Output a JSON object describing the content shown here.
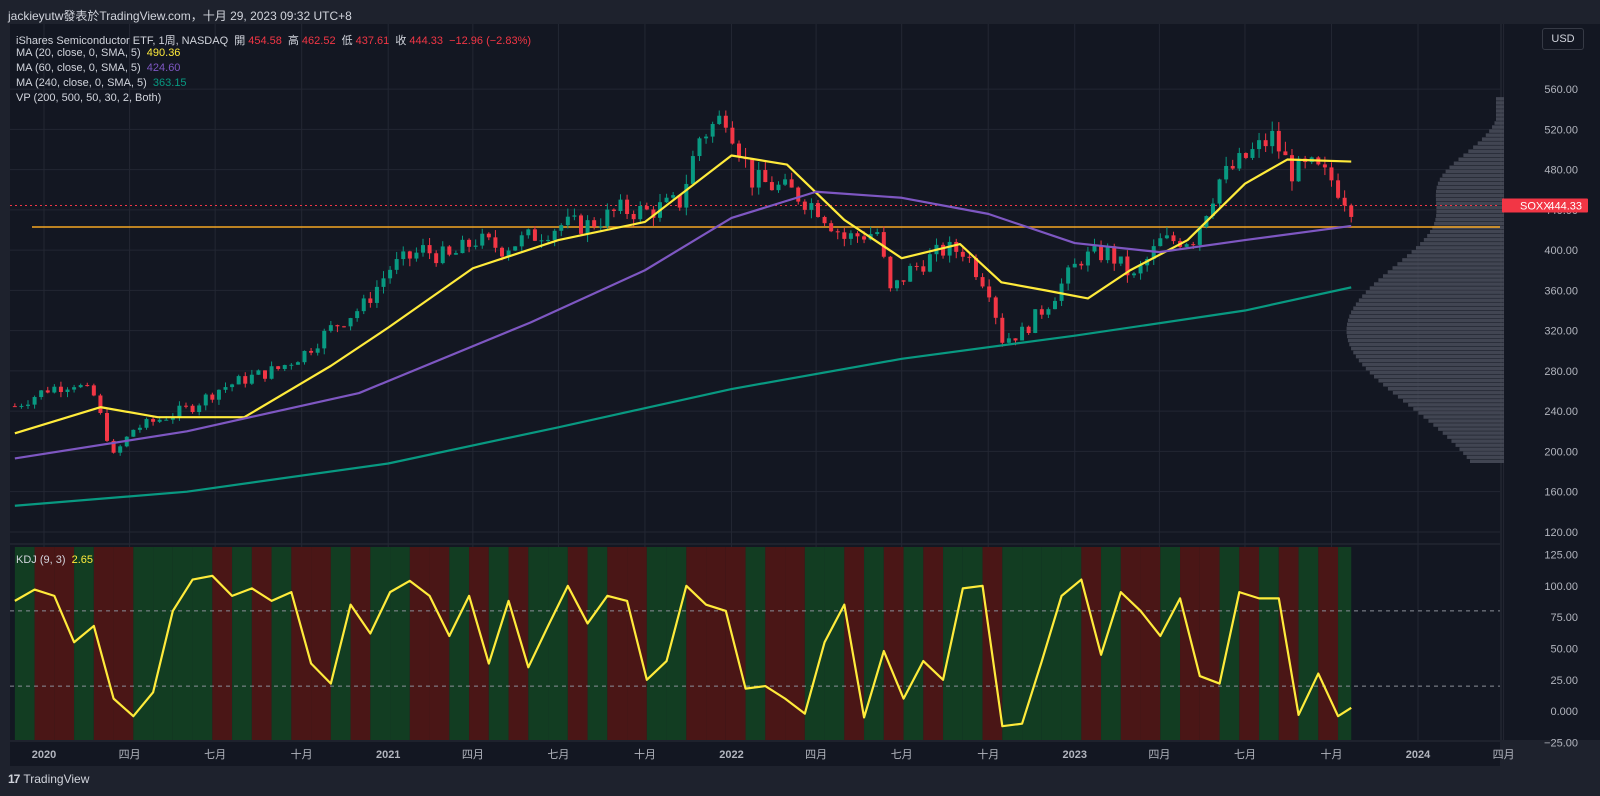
{
  "header": {
    "text": "jackieyutw發表於TradingView.com，十月 29, 2023 09:32 UTC+8"
  },
  "legend": {
    "title_prefix": "iShares Semiconductor ETF, 1周, NASDAQ",
    "ohlc": [
      {
        "label": "開",
        "value": "454.58"
      },
      {
        "label": "高",
        "value": "462.52"
      },
      {
        "label": "低",
        "value": "437.61"
      },
      {
        "label": "收",
        "value": "444.33"
      }
    ],
    "change": "−12.96 (−2.83%)",
    "indicators": [
      {
        "label": "MA (20, close, 0, SMA, 5)",
        "value": "490.36",
        "color": "#ffeb3b"
      },
      {
        "label": "MA (60, close, 0, SMA, 5)",
        "value": "424.60",
        "color": "#7e57c2"
      },
      {
        "label": "MA (240, close, 0, SMA, 5)",
        "value": "363.15",
        "color": "#089981"
      },
      {
        "label": "VP (200, 500, 50, 30, 2, Both)",
        "value": "",
        "color": "#d1d4dc"
      }
    ]
  },
  "kdj_legend": {
    "label": "KDJ (9, 3)",
    "value": "2.65"
  },
  "usd_button": "USD",
  "price_tag": {
    "symbol": "SOXX",
    "value": "444.33"
  },
  "footer": {
    "brand": "TradingView",
    "logo_glyph": "17"
  },
  "colors": {
    "up": "#089981",
    "down": "#f23645",
    "ma20": "#ffeb3b",
    "ma60": "#7e57c2",
    "ma240": "#089981",
    "kdj": "#ffeb3b",
    "bg": "#131722",
    "support": "#f5a623"
  },
  "chart_data": [
    {
      "type": "candlestick",
      "title": "iShares Semiconductor ETF",
      "symbol": "SOXX",
      "interval": "1周",
      "exchange": "NASDAQ",
      "y_ticks": [
        "560.00",
        "520.00",
        "480.00",
        "440.00",
        "400.00",
        "360.00",
        "320.00",
        "280.00",
        "240.00",
        "200.00",
        "160.00",
        "120.00"
      ],
      "ylim": [
        112,
        572
      ],
      "x_ticks": [
        "2020",
        "四月",
        "七月",
        "十月",
        "2021",
        "四月",
        "七月",
        "十月",
        "2022",
        "四月",
        "七月",
        "十月",
        "2023",
        "四月",
        "七月",
        "十月",
        "2024",
        "四月"
      ],
      "x_tick_dates": [
        "2020-01-01",
        "2020-04-01",
        "2020-07-01",
        "2020-10-01",
        "2021-01-01",
        "2021-04-01",
        "2021-07-01",
        "2021-10-01",
        "2022-01-01",
        "2022-04-01",
        "2022-07-01",
        "2022-10-01",
        "2023-01-01",
        "2023-04-01",
        "2023-07-01",
        "2023-10-01",
        "2024-01-01",
        "2024-04-01"
      ],
      "series": [
        {
          "name": "Price (weekly close, approx.)",
          "dates": [
            "2019-12-01",
            "2020-01-05",
            "2020-02-02",
            "2020-02-23",
            "2020-03-15",
            "2020-04-05",
            "2020-05-03",
            "2020-06-07",
            "2020-07-05",
            "2020-08-02",
            "2020-09-06",
            "2020-10-04",
            "2020-11-01",
            "2020-12-06",
            "2021-01-03",
            "2021-02-07",
            "2021-03-07",
            "2021-04-04",
            "2021-05-02",
            "2021-06-06",
            "2021-07-04",
            "2021-08-01",
            "2021-09-05",
            "2021-10-03",
            "2021-11-07",
            "2021-11-28",
            "2021-12-26",
            "2022-01-23",
            "2022-03-06",
            "2022-04-03",
            "2022-05-01",
            "2022-06-05",
            "2022-06-19",
            "2022-07-10",
            "2022-08-14",
            "2022-09-04",
            "2022-10-02",
            "2022-10-16",
            "2022-11-06",
            "2022-12-04",
            "2023-01-08",
            "2023-02-05",
            "2023-03-05",
            "2023-04-02",
            "2023-05-07",
            "2023-06-04",
            "2023-07-02",
            "2023-07-30",
            "2023-08-20",
            "2023-09-10",
            "2023-10-01",
            "2023-10-22"
          ],
          "values": [
            245,
            262,
            268,
            255,
            195,
            222,
            232,
            245,
            262,
            272,
            282,
            298,
            322,
            345,
            382,
            400,
            392,
            410,
            402,
            415,
            425,
            425,
            440,
            438,
            448,
            512,
            535,
            470,
            458,
            442,
            412,
            418,
            358,
            380,
            400,
            400,
            362,
            312,
            318,
            348,
            392,
            398,
            372,
            408,
            412,
            470,
            492,
            512,
            478,
            482,
            470,
            444
          ]
        },
        {
          "name": "MA 20",
          "dates": [
            "2019-12-01",
            "2020-03-01",
            "2020-05-01",
            "2020-08-01",
            "2020-11-01",
            "2021-01-01",
            "2021-04-01",
            "2021-07-01",
            "2021-10-01",
            "2022-01-01",
            "2022-03-01",
            "2022-05-01",
            "2022-07-01",
            "2022-09-01",
            "2022-10-15",
            "2022-12-01",
            "2023-01-15",
            "2023-03-01",
            "2023-05-01",
            "2023-07-01",
            "2023-08-15",
            "2023-10-22"
          ],
          "values": [
            218,
            244,
            234,
            234,
            285,
            323,
            382,
            410,
            428,
            494,
            485,
            430,
            392,
            406,
            368,
            360,
            352,
            380,
            410,
            466,
            490,
            488
          ]
        },
        {
          "name": "MA 60",
          "dates": [
            "2019-12-01",
            "2020-06-01",
            "2020-12-01",
            "2021-06-01",
            "2021-10-01",
            "2022-01-01",
            "2022-04-01",
            "2022-07-01",
            "2022-10-01",
            "2023-01-01",
            "2023-04-01",
            "2023-07-01",
            "2023-10-22"
          ],
          "values": [
            193,
            220,
            258,
            328,
            380,
            432,
            458,
            452,
            436,
            407,
            398,
            410,
            424
          ]
        },
        {
          "name": "MA 240",
          "dates": [
            "2019-12-01",
            "2020-06-01",
            "2021-01-01",
            "2021-07-01",
            "2022-01-01",
            "2022-07-01",
            "2023-01-01",
            "2023-07-01",
            "2023-10-22"
          ],
          "values": [
            146,
            160,
            188,
            224,
            262,
            292,
            315,
            340,
            363
          ]
        }
      ],
      "support_level": 423,
      "last_price": 444.33
    },
    {
      "type": "line",
      "title": "KDJ (9, 3)",
      "y_ticks": [
        "125.00",
        "100.00",
        "75.00",
        "50.00",
        "25.00",
        "0.000",
        "−25.00"
      ],
      "ylim": [
        -31,
        131
      ],
      "reference_lines": [
        80,
        20
      ],
      "series": [
        {
          "name": "KDJ",
          "dates": [
            "2019-12-01",
            "2019-12-22",
            "2020-01-12",
            "2020-02-02",
            "2020-02-23",
            "2020-03-15",
            "2020-04-05",
            "2020-04-26",
            "2020-05-17",
            "2020-06-07",
            "2020-06-28",
            "2020-07-19",
            "2020-08-09",
            "2020-08-30",
            "2020-09-20",
            "2020-10-11",
            "2020-11-01",
            "2020-11-22",
            "2020-12-13",
            "2021-01-03",
            "2021-01-24",
            "2021-02-14",
            "2021-03-07",
            "2021-03-28",
            "2021-04-18",
            "2021-05-09",
            "2021-05-30",
            "2021-06-20",
            "2021-07-11",
            "2021-08-01",
            "2021-08-22",
            "2021-09-12",
            "2021-10-03",
            "2021-10-24",
            "2021-11-14",
            "2021-12-05",
            "2021-12-26",
            "2022-01-16",
            "2022-02-06",
            "2022-02-27",
            "2022-03-20",
            "2022-04-10",
            "2022-05-01",
            "2022-05-22",
            "2022-06-12",
            "2022-07-03",
            "2022-07-24",
            "2022-08-14",
            "2022-09-04",
            "2022-09-25",
            "2022-10-16",
            "2022-11-06",
            "2022-11-27",
            "2022-12-18",
            "2023-01-08",
            "2023-01-29",
            "2023-02-19",
            "2023-03-12",
            "2023-04-02",
            "2023-04-23",
            "2023-05-14",
            "2023-06-04",
            "2023-06-25",
            "2023-07-16",
            "2023-08-06",
            "2023-08-27",
            "2023-09-17",
            "2023-10-08",
            "2023-10-22"
          ],
          "values": [
            88,
            97,
            92,
            55,
            68,
            10,
            -4,
            15,
            80,
            105,
            108,
            92,
            98,
            88,
            95,
            38,
            22,
            85,
            62,
            95,
            104,
            92,
            60,
            92,
            38,
            88,
            35,
            68,
            100,
            70,
            92,
            88,
            25,
            40,
            100,
            85,
            80,
            18,
            20,
            10,
            -2,
            55,
            85,
            -5,
            48,
            10,
            40,
            25,
            98,
            100,
            -12,
            -10,
            40,
            92,
            105,
            45,
            95,
            80,
            60,
            90,
            28,
            22,
            95,
            90,
            90,
            -3,
            30,
            -4,
            2.65
          ]
        }
      ]
    }
  ]
}
